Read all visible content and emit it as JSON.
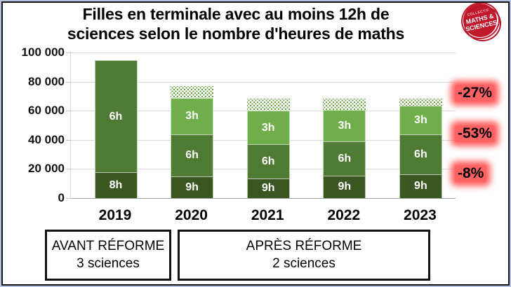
{
  "title": {
    "line1": "Filles en terminale avec au moins 12h de",
    "line2": "sciences selon le nombre d'heures de maths"
  },
  "logo": {
    "line1": "COLLECTIF",
    "line2": "MATHS &",
    "line3": "SCIENCES"
  },
  "boxes": {
    "avant": {
      "line1": "AVANT RÉFORME",
      "line2": "3 sciences"
    },
    "apres": {
      "line1": "APRÈS RÉFORME",
      "line2": "2 sciences"
    }
  },
  "colors": {
    "dark": "#3a5722",
    "mid": "#4e7a33",
    "light": "#6fae4b",
    "dot": "#61a23f",
    "annotation_glow": "#ff6262",
    "logo_red": "#c2182c",
    "gridline": "#d9d9d9",
    "axis": "#a6a6a6"
  },
  "chart_data": {
    "type": "bar",
    "stacked": true,
    "title": "Filles en terminale avec au moins 12h de sciences selon le nombre d'heures de maths",
    "ylim": [
      0,
      100000
    ],
    "ytick_values": [
      100000,
      80000,
      60000,
      40000,
      20000,
      0
    ],
    "ytick_labels": [
      "100 000",
      "80 000",
      "60 000",
      "40 000",
      "20 000",
      "0"
    ],
    "grid": "horizontal",
    "legend": "none",
    "categories": [
      "2019",
      "2020",
      "2021",
      "2022",
      "2023"
    ],
    "bars": [
      {
        "year": "2019",
        "segments": [
          {
            "label": "8h",
            "value": 18000,
            "shade": "dark"
          },
          {
            "label": "6h",
            "value": 76500,
            "shade": "mid"
          }
        ],
        "dotted_top_value": 0,
        "total": 94500
      },
      {
        "year": "2020",
        "segments": [
          {
            "label": "9h",
            "value": 15000,
            "shade": "dark"
          },
          {
            "label": "6h",
            "value": 29000,
            "shade": "mid"
          },
          {
            "label": "3h",
            "value": 25000,
            "shade": "light"
          }
        ],
        "dotted_top_value": 8000,
        "total": 77000
      },
      {
        "year": "2021",
        "segments": [
          {
            "label": "9h",
            "value": 13500,
            "shade": "dark"
          },
          {
            "label": "6h",
            "value": 23500,
            "shade": "mid"
          },
          {
            "label": "3h",
            "value": 23000,
            "shade": "light"
          }
        ],
        "dotted_top_value": 8500,
        "total": 68500
      },
      {
        "year": "2022",
        "segments": [
          {
            "label": "9h",
            "value": 15500,
            "shade": "dark"
          },
          {
            "label": "6h",
            "value": 23500,
            "shade": "mid"
          },
          {
            "label": "3h",
            "value": 21500,
            "shade": "light"
          }
        ],
        "dotted_top_value": 8000,
        "total": 68500
      },
      {
        "year": "2023",
        "segments": [
          {
            "label": "9h",
            "value": 16500,
            "shade": "dark"
          },
          {
            "label": "6h",
            "value": 27500,
            "shade": "mid"
          },
          {
            "label": "3h",
            "value": 19500,
            "shade": "light"
          }
        ],
        "dotted_top_value": 5000,
        "total": 68500
      }
    ],
    "annotations": [
      {
        "label": "-27%",
        "anchor_value": 72000
      },
      {
        "label": "-53%",
        "anchor_value": 44000
      },
      {
        "label": "-8%",
        "anchor_value": 17000
      }
    ]
  }
}
